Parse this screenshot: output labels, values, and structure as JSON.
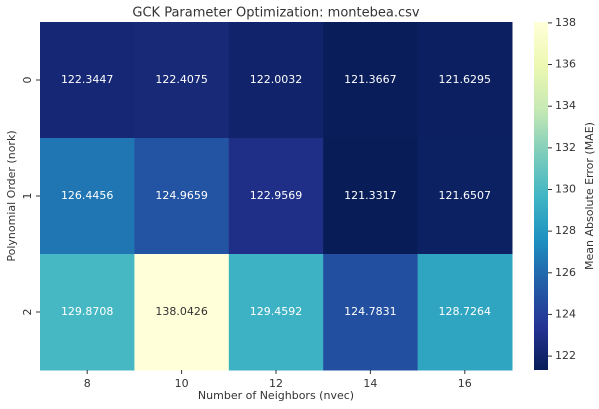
{
  "chart_data": {
    "type": "heatmap",
    "title": "GCK Parameter Optimization: montebea.csv",
    "x_label": "Number of Neighbors (nvec)",
    "y_label": "Polynomial Order (nork)",
    "colorbar_label": "Mean Absolute Error (MAE)",
    "categories": [
      "8",
      "10",
      "12",
      "14",
      "16"
    ],
    "row_categories": [
      "0",
      "1",
      "2"
    ],
    "values": [
      [
        122.3447,
        122.4075,
        122.0032,
        121.3667,
        121.6295
      ],
      [
        126.4456,
        124.9659,
        122.9569,
        121.3317,
        121.6507
      ],
      [
        129.8708,
        138.0426,
        129.4592,
        124.7831,
        128.7264
      ]
    ],
    "colorbar_lim": [
      121.3317,
      138.0426
    ],
    "colorbar_ticks": [
      122,
      124,
      126,
      128,
      130,
      132,
      134,
      136,
      138
    ],
    "colormap": [
      "#081d58",
      "#253494",
      "#225ea8",
      "#1d91c0",
      "#41b6c4",
      "#7fcdbb",
      "#c7e9b4",
      "#edf8b1",
      "#ffffd9"
    ]
  }
}
